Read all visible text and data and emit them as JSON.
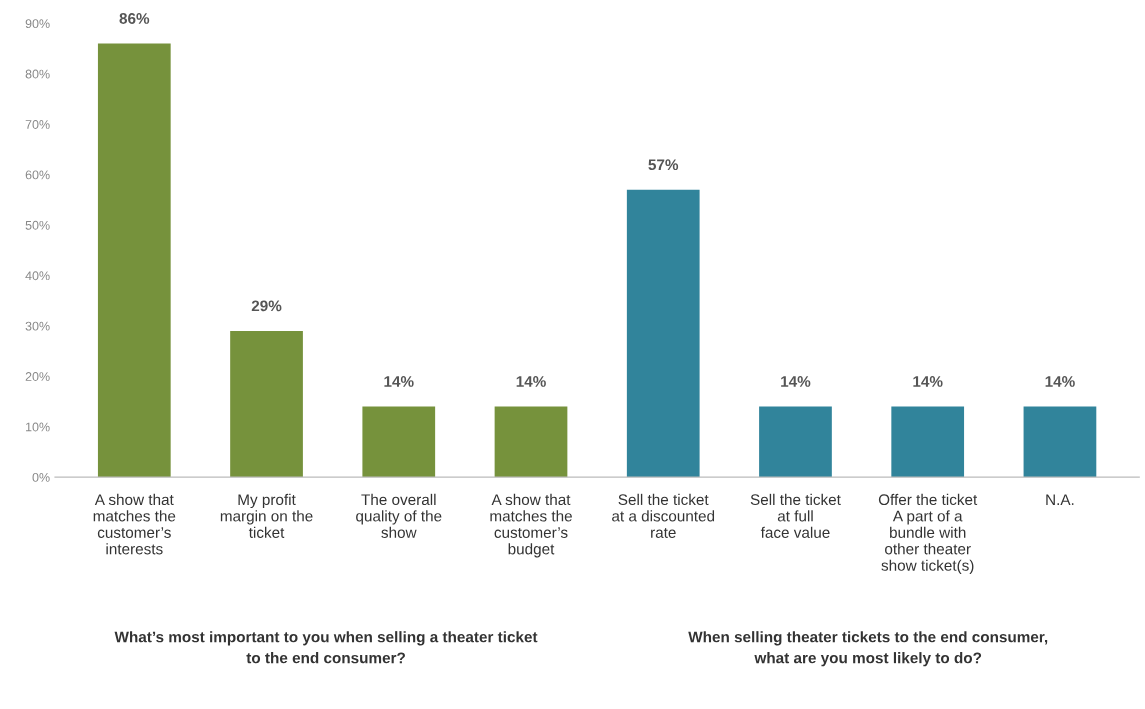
{
  "chart_data": {
    "type": "bar",
    "categories": [
      "A show that\nmatches the\ncustomer’s\ninterests",
      "My profit\nmargin on the\nticket",
      "The overall\nquality of the\nshow",
      "A show that\nmatches the\ncustomer’s\nbudget",
      "Sell the ticket\nat a discounted\nrate",
      "Sell the ticket\nat full\nface value",
      "Offer the ticket\nA part of a\nbundle with\nother theater\nshow ticket(s)",
      "N.A."
    ],
    "values": [
      86,
      29,
      14,
      14,
      57,
      14,
      14,
      14
    ],
    "colors": [
      "#76923c",
      "#76923c",
      "#76923c",
      "#76923c",
      "#31849b",
      "#31849b",
      "#31849b",
      "#31849b"
    ],
    "value_labels": [
      "86%",
      "29%",
      "14%",
      "14%",
      "57%",
      "14%",
      "14%",
      "14%"
    ],
    "ylim": [
      0,
      90
    ],
    "yticks": [
      {
        "value": 0,
        "label": "0%"
      },
      {
        "value": 10,
        "label": "10%"
      },
      {
        "value": 20,
        "label": "20%"
      },
      {
        "value": 30,
        "label": "30%"
      },
      {
        "value": 40,
        "label": "40%"
      },
      {
        "value": 50,
        "label": "50%"
      },
      {
        "value": 60,
        "label": "60%"
      },
      {
        "value": 70,
        "label": "70%"
      },
      {
        "value": 80,
        "label": "80%"
      },
      {
        "value": 90,
        "label": "90%"
      }
    ],
    "grid": false,
    "annotations": [
      "What’s most important to you when selling a theater ticket\nto the end consumer?",
      "When selling theater tickets to the end consumer,\nwhat are you most likely to do?"
    ]
  }
}
